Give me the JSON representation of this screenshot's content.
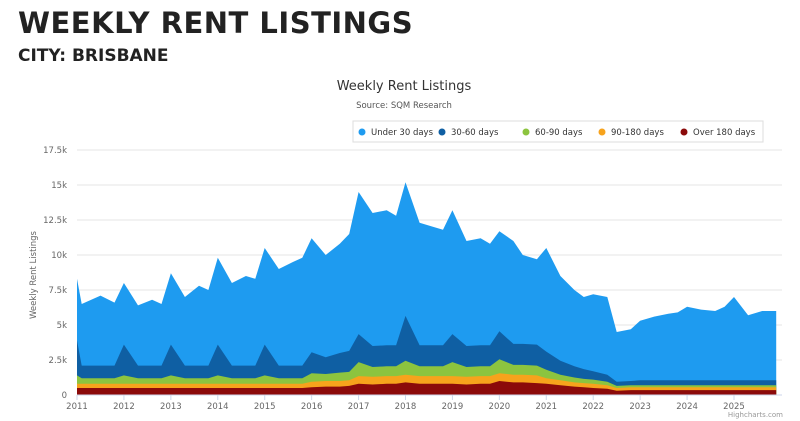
{
  "page": {
    "heading": "WEEKLY RENT LISTINGS",
    "subheading": "CITY: BRISBANE"
  },
  "chart_data": {
    "type": "area",
    "stacked": true,
    "title": "Weekly Rent Listings",
    "subtitle": "Source: SQM Research",
    "ylabel": "Weekly Rent Listings",
    "xlabel": "",
    "ylim": [
      0,
      17500
    ],
    "yticks": [
      0,
      2500,
      5000,
      7500,
      10000,
      12500,
      15000,
      17500
    ],
    "ytick_labels": [
      "0",
      "2.5k",
      "5k",
      "7.5k",
      "10k",
      "12.5k",
      "15k",
      "17.5k"
    ],
    "xticks": [
      "2011",
      "2012",
      "2013",
      "2014",
      "2015",
      "2016",
      "2017",
      "2018",
      "2019",
      "2020",
      "2021",
      "2022",
      "2023",
      "2024",
      "2025"
    ],
    "grid": true,
    "legend": "top-right",
    "credit": "Highcharts.com",
    "x": [
      2011.0,
      2011.1,
      2011.5,
      2011.8,
      2012.0,
      2012.3,
      2012.6,
      2012.8,
      2013.0,
      2013.3,
      2013.6,
      2013.8,
      2014.0,
      2014.3,
      2014.6,
      2014.8,
      2015.0,
      2015.3,
      2015.6,
      2015.8,
      2016.0,
      2016.3,
      2016.6,
      2016.8,
      2017.0,
      2017.3,
      2017.6,
      2017.8,
      2018.0,
      2018.3,
      2018.6,
      2018.8,
      2019.0,
      2019.3,
      2019.6,
      2019.8,
      2020.0,
      2020.3,
      2020.5,
      2020.8,
      2021.0,
      2021.3,
      2021.6,
      2021.8,
      2022.0,
      2022.3,
      2022.5,
      2022.8,
      2023.0,
      2023.3,
      2023.6,
      2023.8,
      2024.0,
      2024.3,
      2024.6,
      2024.8,
      2025.0,
      2025.3,
      2025.6,
      2025.9
    ],
    "series": [
      {
        "name": "Over 180 days",
        "color": "#8b0a0a",
        "values": [
          500,
          500,
          500,
          500,
          500,
          500,
          500,
          500,
          500,
          500,
          500,
          500,
          500,
          500,
          500,
          500,
          500,
          500,
          500,
          500,
          550,
          600,
          600,
          650,
          800,
          750,
          800,
          800,
          900,
          800,
          800,
          800,
          800,
          750,
          800,
          800,
          1000,
          900,
          900,
          850,
          800,
          700,
          600,
          550,
          500,
          450,
          300,
          350,
          350,
          350,
          350,
          350,
          350,
          350,
          350,
          350,
          350,
          350,
          350,
          350
        ]
      },
      {
        "name": "90-180 days",
        "color": "#f7a31c",
        "values": [
          300,
          300,
          300,
          300,
          300,
          300,
          300,
          300,
          300,
          300,
          300,
          300,
          300,
          300,
          300,
          300,
          300,
          300,
          300,
          300,
          400,
          400,
          400,
          400,
          550,
          550,
          550,
          550,
          550,
          550,
          550,
          550,
          550,
          550,
          550,
          550,
          550,
          550,
          550,
          550,
          400,
          350,
          300,
          300,
          300,
          250,
          200,
          200,
          200,
          200,
          200,
          200,
          200,
          200,
          200,
          200,
          200,
          200,
          200,
          200
        ]
      },
      {
        "name": "60-90 days",
        "color": "#8cc43f",
        "values": [
          600,
          400,
          400,
          400,
          600,
          400,
          400,
          400,
          600,
          400,
          400,
          400,
          600,
          400,
          400,
          400,
          600,
          400,
          400,
          400,
          600,
          500,
          600,
          600,
          1000,
          700,
          700,
          700,
          1000,
          700,
          700,
          700,
          1000,
          700,
          700,
          700,
          1000,
          700,
          700,
          700,
          600,
          400,
          350,
          300,
          300,
          250,
          150,
          150,
          150,
          150,
          150,
          150,
          150,
          150,
          150,
          150,
          150,
          150,
          150,
          150
        ]
      },
      {
        "name": "30-60 days",
        "color": "#0f5fa3",
        "values": [
          2500,
          900,
          900,
          900,
          2200,
          900,
          900,
          900,
          2200,
          900,
          900,
          900,
          2200,
          900,
          900,
          900,
          2200,
          900,
          900,
          900,
          1500,
          1200,
          1400,
          1500,
          2000,
          1500,
          1500,
          1500,
          3200,
          1500,
          1500,
          1500,
          2000,
          1500,
          1500,
          1500,
          2000,
          1500,
          1500,
          1500,
          1300,
          1000,
          800,
          700,
          600,
          500,
          300,
          300,
          350,
          350,
          350,
          350,
          350,
          350,
          350,
          350,
          350,
          350,
          350,
          350
        ]
      },
      {
        "name": "Under 30 days",
        "color": "#1e9bf0",
        "values": [
          4400,
          4400,
          5000,
          4500,
          4400,
          4300,
          4700,
          4400,
          5100,
          4900,
          5700,
          5400,
          6200,
          5900,
          6400,
          6200,
          6900,
          6900,
          7400,
          7700,
          8150,
          7300,
          7800,
          8350,
          10150,
          9500,
          9650,
          9250,
          9550,
          8750,
          8450,
          8250,
          8850,
          7500,
          7650,
          7250,
          7150,
          7350,
          6350,
          6100,
          7400,
          6050,
          5450,
          5150,
          5500,
          5550,
          3550,
          3700,
          4250,
          4550,
          4750,
          4850,
          5250,
          5050,
          4950,
          5250,
          5950,
          4650,
          4950,
          4950
        ]
      }
    ],
    "legend_order": [
      "Under 30 days",
      "30-60 days",
      "60-90 days",
      "90-180 days",
      "Over 180 days"
    ]
  }
}
